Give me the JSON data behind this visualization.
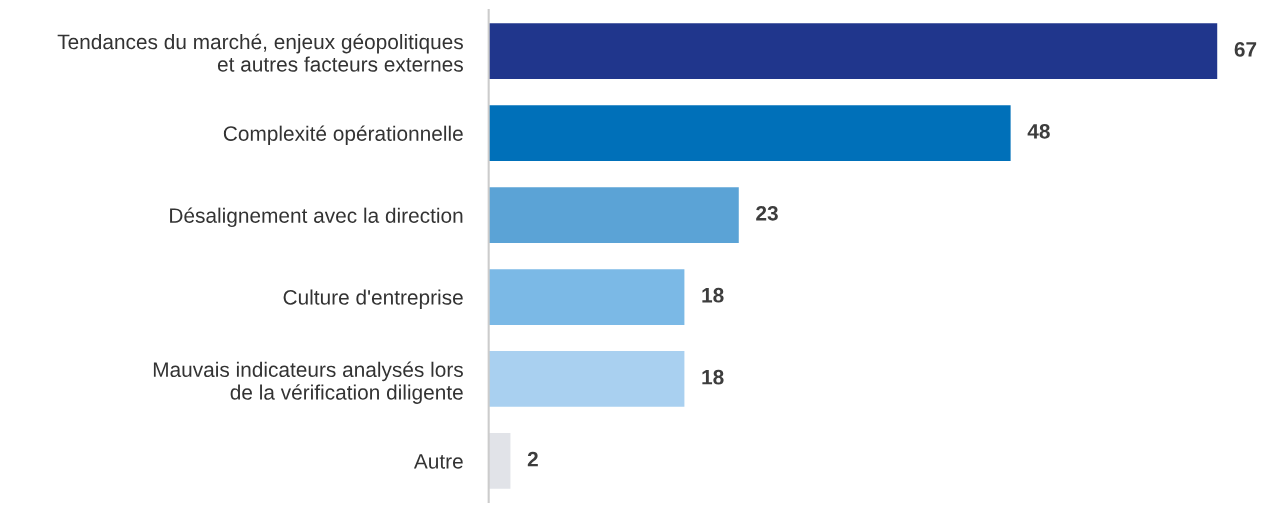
{
  "chart_data": {
    "type": "bar",
    "orientation": "horizontal",
    "categories": [
      "Tendances du marché, enjeux géopolitiques\net autres facteurs externes",
      "Complexité opérationnelle",
      "Désalignement avec la direction",
      "Culture d'entreprise",
      "Mauvais indicateurs analysés lors\nde la vérification diligente",
      "Autre"
    ],
    "values": [
      67,
      48,
      23,
      18,
      18,
      2
    ],
    "colors": [
      "#20368c",
      "#0070b9",
      "#5ba3d6",
      "#7bb9e6",
      "#a9d0f0",
      "#e1e3e8"
    ],
    "data_labels": true,
    "grid": false,
    "legend": false
  }
}
